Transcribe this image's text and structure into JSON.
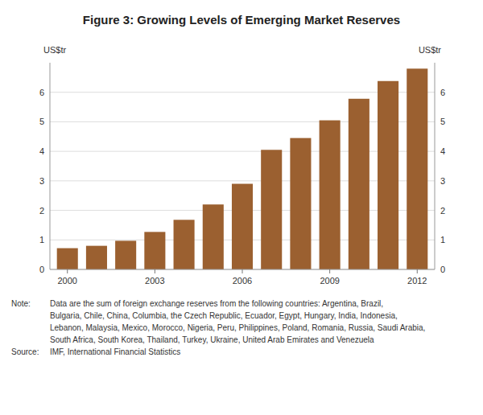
{
  "chart_data": {
    "type": "bar",
    "title": "Figure 3: Growing Levels of Emerging Market Reserves",
    "y_label": "US$tr",
    "y2_label": "US$tr",
    "categories": [
      "2000",
      null,
      null,
      "2003",
      null,
      null,
      "2006",
      null,
      null,
      "2009",
      null,
      null,
      "2012"
    ],
    "values": [
      0.72,
      0.8,
      0.97,
      1.27,
      1.68,
      2.2,
      2.9,
      4.05,
      4.45,
      5.05,
      5.78,
      6.38,
      6.8
    ],
    "color": "#9B6030",
    "ylim": [
      0,
      7.0
    ],
    "yticks": [
      0,
      1,
      2,
      3,
      4,
      5,
      6
    ],
    "y2lim": [
      0,
      7.0
    ],
    "y2ticks": [
      0,
      1,
      2,
      3,
      4,
      5,
      6
    ],
    "grid": true,
    "annotations": [
      {
        "label": "Note:",
        "lines": [
          "Data are the sum of foreign exchange reserves from the following countries: Argentina, Brazil,",
          "Bulgaria, Chile, China, Columbia, the Czech Republic, Ecuador, Egypt, Hungary, India, Indonesia,",
          "Lebanon, Malaysia, Mexico, Morocco, Nigeria, Peru, Philippines, Poland, Romania, Russia, Saudi Arabia,",
          "South Africa, South Korea, Thailand, Turkey, Ukraine, United Arab Emirates and Venezuela"
        ]
      },
      {
        "label": "Source:",
        "lines": [
          "IMF, International Financial Statistics"
        ]
      }
    ]
  }
}
